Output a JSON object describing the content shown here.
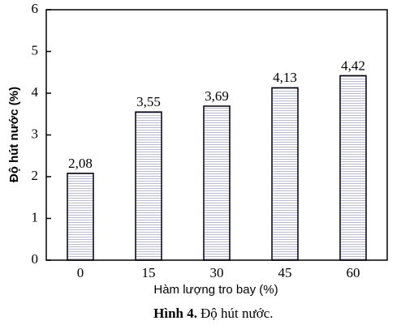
{
  "chart_data": {
    "type": "bar",
    "categories": [
      "0",
      "15",
      "30",
      "45",
      "60"
    ],
    "values": [
      2.08,
      3.55,
      3.69,
      4.13,
      4.42
    ],
    "value_labels": [
      "2,08",
      "3,55",
      "3,69",
      "4,13",
      "4,42"
    ],
    "color": "#e6e6f7",
    "ylim": [
      0,
      6
    ],
    "yticks": [
      0,
      1,
      2,
      3,
      4,
      5,
      6
    ],
    "x_label": "Hàm lượng tro bay (%)",
    "y_label": "Độ hút nước (%)",
    "figure_label": "Hình 4.",
    "caption": "Độ hút nước.",
    "grid": false
  }
}
